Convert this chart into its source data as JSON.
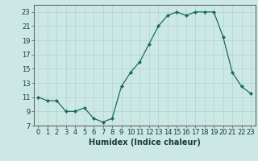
{
  "x": [
    0,
    1,
    2,
    3,
    4,
    5,
    6,
    7,
    8,
    9,
    10,
    11,
    12,
    13,
    14,
    15,
    16,
    17,
    18,
    19,
    20,
    21,
    22,
    23
  ],
  "y": [
    11,
    10.5,
    10.5,
    9,
    9,
    9.5,
    8,
    7.5,
    8,
    12.5,
    14.5,
    16,
    18.5,
    21,
    22.5,
    23,
    22.5,
    23,
    23,
    23,
    19.5,
    14.5,
    12.5,
    11.5
  ],
  "xlabel": "Humidex (Indice chaleur)",
  "ylim": [
    7,
    24
  ],
  "xlim": [
    -0.5,
    23.5
  ],
  "yticks": [
    7,
    9,
    11,
    13,
    15,
    17,
    19,
    21,
    23
  ],
  "xticks": [
    0,
    1,
    2,
    3,
    4,
    5,
    6,
    7,
    8,
    9,
    10,
    11,
    12,
    13,
    14,
    15,
    16,
    17,
    18,
    19,
    20,
    21,
    22,
    23
  ],
  "line_color": "#1a6b5a",
  "marker_color": "#1a6b5a",
  "bg_color": "#cce8e4",
  "grid_color": "#b0d4d0",
  "xlabel_fontsize": 7,
  "tick_fontsize": 6,
  "label_color": "#1a3a3a"
}
